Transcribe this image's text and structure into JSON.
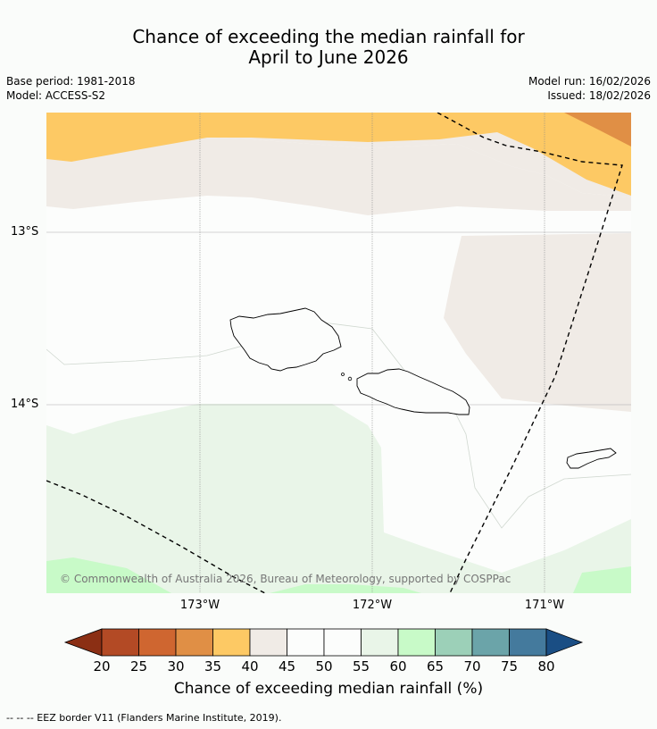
{
  "title_line1": "Chance of exceeding the median rainfall for",
  "title_line2": "April to June 2026",
  "meta": {
    "base_period": "Base period: 1981-2018",
    "model": "Model: ACCESS-S2",
    "model_run": "Model run: 16/02/2026",
    "issued": "Issued: 18/02/2026"
  },
  "axes": {
    "lat_labels": [
      "13°S",
      "14°S"
    ],
    "lon_labels": [
      "173°W",
      "172°W",
      "171°W"
    ]
  },
  "copyright": "© Commonwealth of Australia 2026, Bureau of Meteorology, supported by COSPPac",
  "colorbar": {
    "title": "Chance of exceeding median rainfall (%)",
    "ticks": [
      "20",
      "25",
      "30",
      "35",
      "40",
      "45",
      "50",
      "55",
      "60",
      "65",
      "70",
      "75",
      "80"
    ],
    "colors": [
      "#8b2f14",
      "#b34a25",
      "#cf6630",
      "#e08f45",
      "#fdc964",
      "#f0ebe6",
      "#fcfdfc",
      "#fcfdfc",
      "#e9f5e8",
      "#c8fac8",
      "#9cd0b8",
      "#6ba4a9",
      "#447a9d",
      "#1a4e84"
    ]
  },
  "legend_footer": "-- -- -- EEZ border V11 (Flanders Marine Institute, 2019)."
}
